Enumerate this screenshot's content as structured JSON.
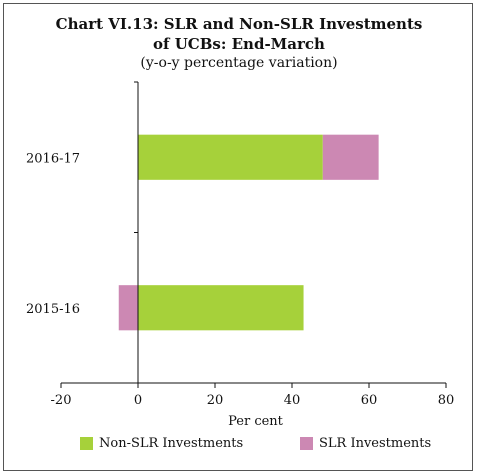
{
  "chart_data": {
    "type": "bar",
    "orientation": "horizontal",
    "stacked": true,
    "title_line1": "Chart VI.13: SLR and Non-SLR Investments",
    "title_line2": "of UCBs: End-March",
    "subtitle": "(y-o-y percentage variation)",
    "xlabel": "Per cent",
    "ylabel": "",
    "xlim": [
      -20,
      80
    ],
    "xticks": [
      -20,
      0,
      20,
      40,
      60,
      80
    ],
    "categories": [
      "2016-17",
      "2015-16"
    ],
    "series": [
      {
        "name": "Non-SLR Investments",
        "color": "#a6d13a",
        "values": [
          48,
          43
        ]
      },
      {
        "name": "SLR Investments",
        "color": "#cc88b3",
        "values": [
          14.5,
          -5
        ]
      }
    ],
    "legend_position": "bottom",
    "grid": false
  }
}
